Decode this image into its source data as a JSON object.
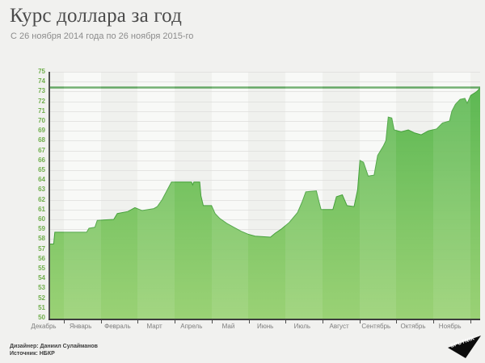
{
  "header": {
    "title": "Курс доллара за год",
    "subtitle": "С 26 ноября 2014 года по 26 ноября 2015-го"
  },
  "footer": {
    "designer": "Дизайнер: Даниил Сулайманов",
    "source": "Источник: НБКР",
    "logo_text": "SPUTNIK"
  },
  "chart_data": {
    "type": "area",
    "title": "Курс доллара за год",
    "subtitle": "С 26 ноября 2014 года по 26 ноября 2015-го",
    "x_categories": [
      "Декабрь",
      "Январь",
      "Февраль",
      "Март",
      "Апрель",
      "Май",
      "Июнь",
      "Июль",
      "Август",
      "Сентябрь",
      "Октябрь",
      "Ноябрь"
    ],
    "x_range_days": [
      0,
      365
    ],
    "ylim": [
      50,
      75
    ],
    "y_ticks": [
      75,
      74,
      73,
      72,
      71,
      70,
      69,
      68,
      67,
      66,
      65,
      64,
      63,
      62,
      61,
      60,
      59,
      58,
      57,
      56,
      55,
      54,
      53,
      52,
      51,
      50
    ],
    "grid": "horizontal",
    "legend": "none",
    "reference_line_value": 73.4,
    "series": [
      {
        "name": "Курс доллара",
        "points": [
          [
            0,
            57.5
          ],
          [
            3,
            57.5
          ],
          [
            4,
            58.7
          ],
          [
            31,
            58.7
          ],
          [
            33,
            59.1
          ],
          [
            38,
            59.2
          ],
          [
            40,
            59.9
          ],
          [
            54,
            60.0
          ],
          [
            57,
            60.6
          ],
          [
            66,
            60.8
          ],
          [
            72,
            61.2
          ],
          [
            78,
            60.9
          ],
          [
            88,
            61.1
          ],
          [
            91,
            61.3
          ],
          [
            95,
            62.0
          ],
          [
            99,
            62.9
          ],
          [
            103,
            63.8
          ],
          [
            120,
            63.8
          ],
          [
            121,
            63.5
          ],
          [
            122,
            63.8
          ],
          [
            127,
            63.8
          ],
          [
            128,
            62.4
          ],
          [
            130,
            61.4
          ],
          [
            137,
            61.4
          ],
          [
            140,
            60.6
          ],
          [
            144,
            60.1
          ],
          [
            150,
            59.6
          ],
          [
            156,
            59.2
          ],
          [
            162,
            58.8
          ],
          [
            168,
            58.5
          ],
          [
            174,
            58.3
          ],
          [
            187,
            58.2
          ],
          [
            191,
            58.6
          ],
          [
            196,
            59.0
          ],
          [
            203,
            59.7
          ],
          [
            210,
            60.7
          ],
          [
            214,
            61.8
          ],
          [
            217,
            62.8
          ],
          [
            226,
            62.9
          ],
          [
            228,
            61.9
          ],
          [
            230,
            61.0
          ],
          [
            240,
            61.0
          ],
          [
            243,
            62.3
          ],
          [
            248,
            62.5
          ],
          [
            252,
            61.4
          ],
          [
            258,
            61.3
          ],
          [
            261,
            63.0
          ],
          [
            263,
            66.0
          ],
          [
            266,
            65.8
          ],
          [
            270,
            64.4
          ],
          [
            275,
            64.5
          ],
          [
            278,
            66.5
          ],
          [
            283,
            67.5
          ],
          [
            285,
            68.0
          ],
          [
            287,
            70.4
          ],
          [
            290,
            70.3
          ],
          [
            292,
            69.1
          ],
          [
            298,
            68.9
          ],
          [
            304,
            69.1
          ],
          [
            309,
            68.8
          ],
          [
            315,
            68.6
          ],
          [
            321,
            69.0
          ],
          [
            328,
            69.2
          ],
          [
            333,
            69.8
          ],
          [
            339,
            70.0
          ],
          [
            341,
            71.0
          ],
          [
            344,
            71.7
          ],
          [
            348,
            72.2
          ],
          [
            352,
            72.3
          ],
          [
            354,
            71.8
          ],
          [
            357,
            72.6
          ],
          [
            361,
            72.9
          ],
          [
            363,
            73.1
          ],
          [
            365,
            73.4
          ]
        ]
      }
    ],
    "colors": {
      "area_top": "#55b54b",
      "area_bottom": "#96d06f",
      "area_edge": "#46a03c",
      "reference_line": "#57a157",
      "axis": "#4a4a4a",
      "y_tick_text": "#6fae4b",
      "x_tick_text": "#7d7d7d",
      "background": "#f1f1ef"
    }
  }
}
